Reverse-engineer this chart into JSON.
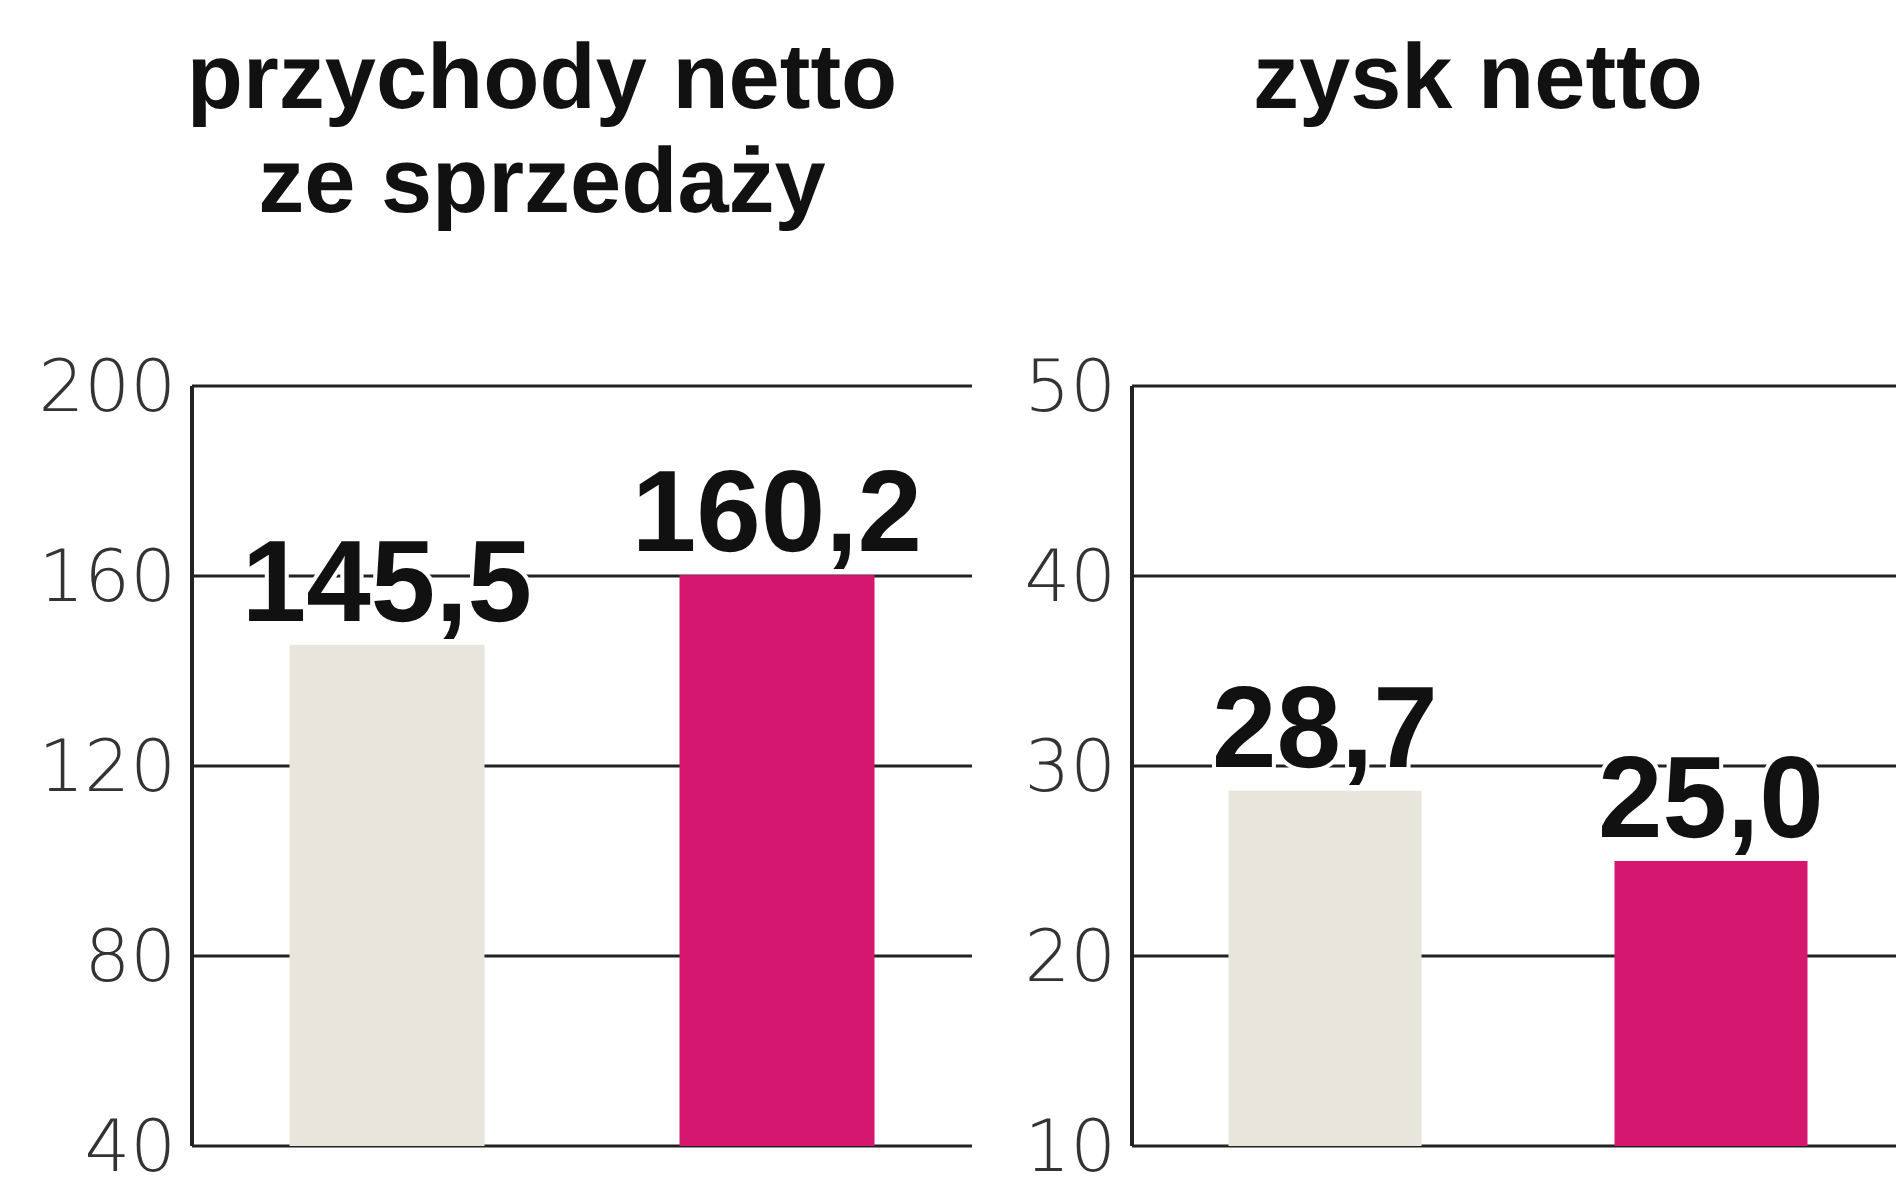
{
  "chart_data": [
    {
      "type": "bar",
      "title": "przychody netto ze sprzedaży",
      "categories": [
        null,
        null
      ],
      "series": [
        {
          "color": "#e8e6dc",
          "values": [
            145.5,
            null
          ],
          "value_labels": [
            "145,5",
            null
          ]
        },
        {
          "color": "#d6176f",
          "values": [
            null,
            160.2
          ],
          "value_labels": [
            null,
            "160,2"
          ]
        }
      ],
      "ylim": [
        40,
        200
      ],
      "yticks": [
        40,
        80,
        120,
        160,
        200
      ],
      "grid": "y"
    },
    {
      "type": "bar",
      "title": "zysk netto",
      "categories": [
        null,
        null
      ],
      "series": [
        {
          "color": "#e8e6dc",
          "values": [
            28.7,
            null
          ],
          "value_labels": [
            "28,7",
            null
          ]
        },
        {
          "color": "#d6176f",
          "values": [
            null,
            25.0
          ],
          "value_labels": [
            null,
            "25,0"
          ]
        }
      ],
      "ylim": [
        10,
        50
      ],
      "yticks": [
        10,
        20,
        30,
        40,
        50
      ],
      "grid": "y"
    }
  ]
}
